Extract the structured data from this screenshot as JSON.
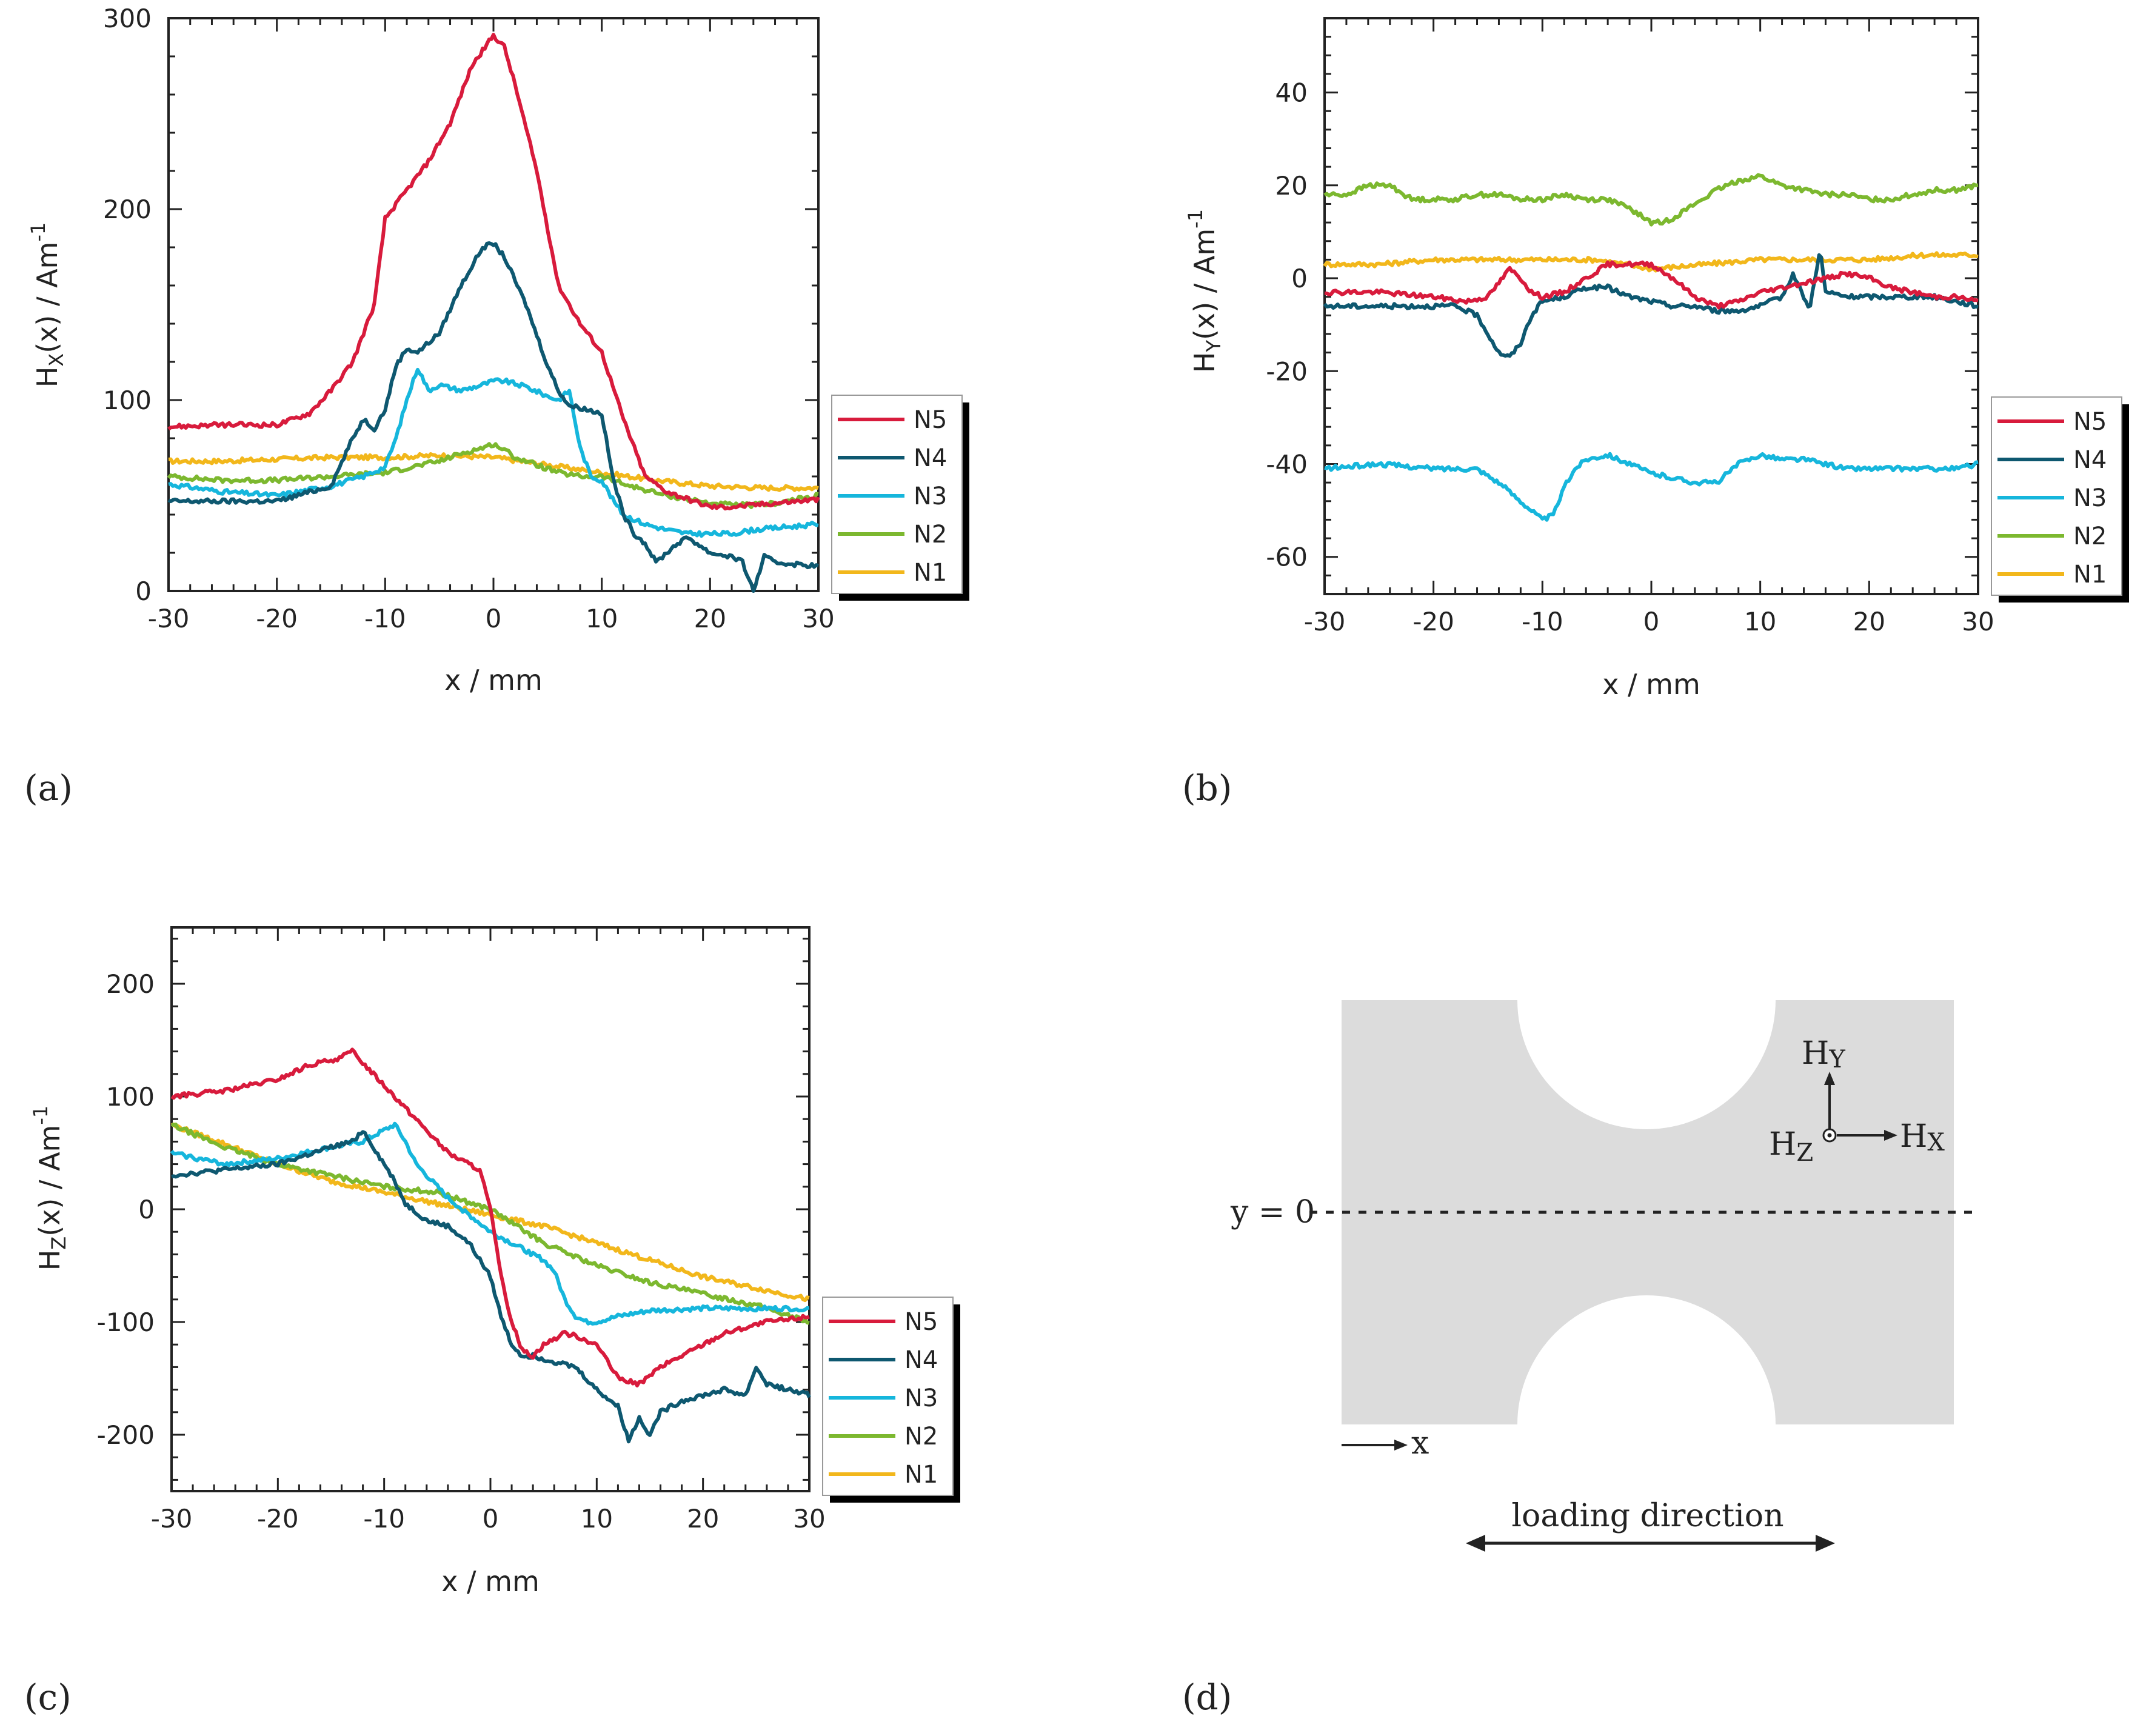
{
  "panel_labels": {
    "a": "(a)",
    "b": "(b)",
    "c": "(c)",
    "d": "(d)"
  },
  "colors": {
    "N5": "#d81b3c",
    "N4": "#0e5870",
    "N3": "#16b6dc",
    "N2": "#7cb82f",
    "N1": "#f2b71b"
  },
  "chart_data": [
    {
      "id": "a",
      "type": "line",
      "xlabel": "x / mm",
      "ylabel_main": "H",
      "ylabel_sub": "X",
      "ylabel_rest": "(x) / Am",
      "ylabel_sup": "-1",
      "xlim": [
        -30,
        30
      ],
      "ylim": [
        0,
        300
      ],
      "xticks": [
        -30,
        -20,
        -10,
        0,
        10,
        20,
        30
      ],
      "yticks": [
        0,
        100,
        200,
        300
      ],
      "legend": [
        "N5",
        "N4",
        "N3",
        "N2",
        "N1"
      ],
      "series": [
        {
          "name": "N5",
          "x": [
            -30,
            -25,
            -20,
            -17,
            -15,
            -13,
            -11,
            -10,
            -8,
            -6,
            -4,
            -2,
            0,
            1,
            2,
            4,
            6,
            8,
            10,
            12,
            14,
            16,
            18,
            20,
            22,
            24,
            26,
            28,
            30
          ],
          "y": [
            86,
            87,
            87,
            93,
            105,
            120,
            150,
            195,
            210,
            225,
            245,
            275,
            291,
            285,
            265,
            220,
            160,
            140,
            125,
            90,
            60,
            52,
            48,
            44,
            44,
            45,
            46,
            47,
            48
          ]
        },
        {
          "name": "N4",
          "x": [
            -30,
            -25,
            -20,
            -15,
            -13,
            -12,
            -11,
            -10,
            -9,
            -8,
            -7,
            -5,
            -3,
            -1,
            0,
            1,
            3,
            5,
            6,
            7,
            8,
            10,
            11,
            12,
            13,
            14,
            15,
            16,
            17,
            18,
            20,
            22,
            23,
            24,
            25,
            26,
            28,
            30
          ],
          "y": [
            47,
            47,
            47,
            55,
            80,
            90,
            85,
            95,
            118,
            127,
            125,
            135,
            160,
            180,
            182,
            175,
            150,
            118,
            105,
            97,
            96,
            93,
            60,
            40,
            30,
            25,
            15,
            20,
            25,
            28,
            20,
            18,
            15,
            0,
            18,
            15,
            14,
            13
          ]
        },
        {
          "name": "N3",
          "x": [
            -30,
            -25,
            -20,
            -15,
            -12,
            -10,
            -9,
            -8,
            -7,
            -6,
            -5,
            -3,
            -1,
            0,
            1,
            3,
            5,
            6,
            7,
            8,
            9,
            10,
            11,
            12,
            14,
            16,
            18,
            20,
            22,
            24,
            26,
            28,
            30
          ],
          "y": [
            56,
            52,
            50,
            55,
            60,
            65,
            80,
            100,
            117,
            105,
            108,
            105,
            108,
            110,
            110,
            107,
            102,
            100,
            105,
            75,
            60,
            58,
            48,
            40,
            35,
            32,
            30,
            30,
            30,
            32,
            33,
            34,
            35
          ]
        },
        {
          "name": "N2",
          "x": [
            -30,
            -25,
            -20,
            -15,
            -10,
            -5,
            -3,
            -1,
            0,
            1,
            2,
            4,
            6,
            8,
            10,
            12,
            14,
            16,
            18,
            20,
            22,
            24,
            26,
            28,
            30
          ],
          "y": [
            60,
            58,
            58,
            60,
            62,
            68,
            72,
            75,
            77,
            74,
            70,
            66,
            62,
            60,
            60,
            56,
            53,
            50,
            48,
            46,
            45,
            45,
            46,
            48,
            50
          ]
        },
        {
          "name": "N1",
          "x": [
            -30,
            -25,
            -20,
            -15,
            -10,
            -5,
            0,
            5,
            10,
            15,
            20,
            25,
            30
          ],
          "y": [
            68,
            68,
            69,
            70,
            70,
            71,
            70,
            66,
            62,
            58,
            55,
            54,
            54
          ]
        }
      ]
    },
    {
      "id": "b",
      "type": "line",
      "xlabel": "x / mm",
      "ylabel_main": "H",
      "ylabel_sub": "Y",
      "ylabel_rest": "(x) / Am",
      "ylabel_sup": "-1",
      "xlim": [
        -30,
        30
      ],
      "ylim": [
        -68,
        56
      ],
      "xticks": [
        -30,
        -20,
        -10,
        0,
        10,
        20,
        30
      ],
      "yticks": [
        -60,
        -40,
        -20,
        0,
        20,
        40
      ],
      "legend": [
        "N5",
        "N4",
        "N3",
        "N2",
        "N1"
      ],
      "series": [
        {
          "name": "N5",
          "x": [
            -30,
            -25,
            -20,
            -17,
            -15,
            -14,
            -13,
            -12,
            -11,
            -10,
            -8,
            -6,
            -4,
            -2,
            0,
            2,
            4,
            6,
            8,
            10,
            12,
            14,
            16,
            18,
            20,
            22,
            24,
            26,
            28,
            30
          ],
          "y": [
            -3,
            -3,
            -4,
            -5,
            -4,
            -1,
            2,
            0,
            -3,
            -4,
            -3,
            0,
            3,
            3,
            3,
            0,
            -4,
            -6,
            -5,
            -3,
            -2,
            -1,
            0,
            1,
            0,
            -2,
            -3,
            -4,
            -4,
            -5
          ]
        },
        {
          "name": "N4",
          "x": [
            -30,
            -25,
            -20,
            -18,
            -16,
            -15,
            -14,
            -13,
            -12,
            -11,
            -10,
            -8,
            -6,
            -4,
            -2,
            0,
            2,
            4,
            6,
            8,
            10,
            12,
            13,
            14,
            14.5,
            15,
            15.5,
            16,
            18,
            20,
            22,
            24,
            26,
            28,
            30
          ],
          "y": [
            -6,
            -6,
            -6,
            -6,
            -8,
            -12,
            -16,
            -17,
            -14,
            -8,
            -5,
            -4,
            -2,
            -2,
            -4,
            -5,
            -6,
            -6,
            -7,
            -7,
            -6,
            -4,
            1,
            -4,
            -7,
            0,
            6,
            -3,
            -4,
            -4,
            -4,
            -4,
            -4,
            -5,
            -6
          ]
        },
        {
          "name": "N3",
          "x": [
            -30,
            -25,
            -20,
            -16,
            -14,
            -12,
            -11,
            -10,
            -9,
            -8,
            -7,
            -6,
            -4,
            -2,
            0,
            2,
            4,
            6,
            8,
            10,
            12,
            14,
            16,
            18,
            20,
            22,
            24,
            26,
            28,
            30
          ],
          "y": [
            -41,
            -40,
            -41,
            -41,
            -44,
            -48,
            -50,
            -52,
            -51,
            -45,
            -41,
            -39,
            -38,
            -40,
            -42,
            -43,
            -44,
            -44,
            -40,
            -38,
            -39,
            -39,
            -40,
            -41,
            -41,
            -41,
            -41,
            -41,
            -41,
            -40
          ]
        },
        {
          "name": "N2",
          "x": [
            -30,
            -28,
            -26,
            -24,
            -22,
            -20,
            -18,
            -16,
            -14,
            -12,
            -10,
            -8,
            -6,
            -4,
            -2,
            0,
            1,
            2,
            4,
            6,
            8,
            10,
            12,
            14,
            16,
            18,
            20,
            22,
            24,
            26,
            28,
            30
          ],
          "y": [
            18,
            18,
            20,
            20,
            17,
            17,
            17,
            18,
            18,
            17,
            17,
            18,
            17,
            17,
            15,
            12,
            12,
            13,
            16,
            19,
            21,
            22,
            20,
            19,
            18,
            18,
            17,
            17,
            18,
            19,
            19,
            20
          ]
        },
        {
          "name": "N1",
          "x": [
            -30,
            -25,
            -20,
            -15,
            -10,
            -5,
            0,
            5,
            10,
            15,
            20,
            25,
            30
          ],
          "y": [
            3,
            3,
            4,
            4,
            4,
            4,
            2,
            3,
            4,
            4,
            4,
            5,
            5
          ]
        }
      ]
    },
    {
      "id": "c",
      "type": "line",
      "xlabel": "x / mm",
      "ylabel_main": "H",
      "ylabel_sub": "Z",
      "ylabel_rest": "(x) / Am",
      "ylabel_sup": "-1",
      "xlim": [
        -30,
        30
      ],
      "ylim": [
        -250,
        250
      ],
      "xticks": [
        -30,
        -20,
        -10,
        0,
        10,
        20,
        30
      ],
      "yticks": [
        -200,
        -100,
        0,
        100,
        200
      ],
      "legend": [
        "N5",
        "N4",
        "N3",
        "N2",
        "N1"
      ],
      "series": [
        {
          "name": "N5",
          "x": [
            -30,
            -25,
            -20,
            -17,
            -15,
            -14,
            -13,
            -12,
            -10,
            -8,
            -6,
            -4,
            -2,
            -1,
            0,
            1,
            2,
            3,
            4,
            5,
            6,
            7,
            8,
            10,
            12,
            14,
            16,
            18,
            20,
            22,
            24,
            26,
            28,
            30
          ],
          "y": [
            100,
            105,
            115,
            128,
            132,
            135,
            140,
            130,
            110,
            90,
            70,
            50,
            40,
            35,
            0,
            -60,
            -100,
            -125,
            -130,
            -120,
            -115,
            -110,
            -112,
            -120,
            -150,
            -155,
            -140,
            -130,
            -120,
            -110,
            -105,
            -100,
            -98,
            -95
          ]
        },
        {
          "name": "N4",
          "x": [
            -30,
            -25,
            -20,
            -15,
            -13,
            -12,
            -11,
            -10,
            -9,
            -8,
            -6,
            -4,
            -2,
            0,
            1,
            2,
            3,
            4,
            6,
            8,
            10,
            12,
            13,
            14,
            15,
            16,
            18,
            20,
            22,
            24,
            25,
            26,
            28,
            30
          ],
          "y": [
            30,
            35,
            40,
            55,
            60,
            70,
            55,
            40,
            25,
            5,
            -10,
            -15,
            -30,
            -60,
            -95,
            -120,
            -130,
            -130,
            -135,
            -140,
            -160,
            -175,
            -205,
            -185,
            -200,
            -180,
            -170,
            -165,
            -160,
            -165,
            -140,
            -155,
            -160,
            -165
          ]
        },
        {
          "name": "N3",
          "x": [
            -30,
            -25,
            -20,
            -15,
            -12,
            -10,
            -9,
            -8,
            -7,
            -6,
            -4,
            -2,
            0,
            2,
            4,
            5,
            6,
            7,
            8,
            9,
            10,
            12,
            15,
            20,
            25,
            30
          ],
          "y": [
            50,
            40,
            45,
            55,
            60,
            70,
            75,
            60,
            40,
            30,
            10,
            -5,
            -20,
            -30,
            -40,
            -45,
            -55,
            -80,
            -95,
            -100,
            -100,
            -95,
            -90,
            -88,
            -88,
            -88
          ]
        },
        {
          "name": "N2",
          "x": [
            -30,
            -25,
            -20,
            -15,
            -10,
            -5,
            0,
            5,
            10,
            15,
            20,
            25,
            30
          ],
          "y": [
            75,
            55,
            40,
            30,
            20,
            15,
            0,
            -30,
            -50,
            -65,
            -75,
            -85,
            -100
          ]
        },
        {
          "name": "N1",
          "x": [
            -30,
            -25,
            -20,
            -15,
            -10,
            -5,
            0,
            5,
            10,
            15,
            20,
            25,
            30
          ],
          "y": [
            75,
            58,
            40,
            25,
            15,
            5,
            -5,
            -15,
            -30,
            -45,
            -60,
            -70,
            -80
          ]
        }
      ]
    }
  ],
  "diagram": {
    "y0_label": "y = 0",
    "x_label": "x",
    "loading_label": "loading direction",
    "hy_main": "H",
    "hy_sub": "Y",
    "hx_main": "H",
    "hx_sub": "X",
    "hz_main": "H",
    "hz_sub": "Z"
  }
}
